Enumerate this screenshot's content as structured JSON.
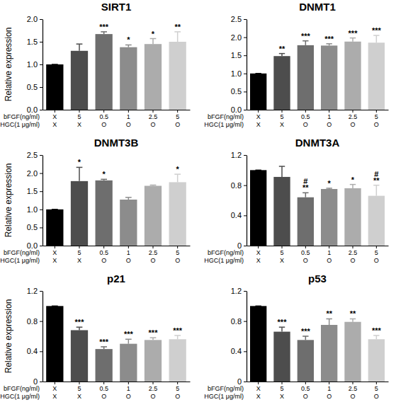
{
  "chart_data": [
    {
      "type": "bar",
      "title": "SIRT1",
      "ylabel": "Relative expression",
      "x_label_rows": [
        {
          "label": "bFGF(ng/ml)",
          "values": [
            "X",
            "5",
            "0.5",
            "1",
            "2.5",
            "5"
          ]
        },
        {
          "label": "HGC(1 μg/ml)",
          "values": [
            "X",
            "X",
            "O",
            "O",
            "O",
            "O"
          ]
        }
      ],
      "values": [
        1.0,
        1.3,
        1.67,
        1.38,
        1.45,
        1.5
      ],
      "errors": [
        0,
        0.15,
        0.05,
        0.05,
        0.12,
        0.22
      ],
      "annotations": [
        null,
        null,
        [
          "***"
        ],
        [
          "*"
        ],
        [
          "*"
        ],
        [
          "**"
        ]
      ],
      "colors": [
        "#000000",
        "#4d4d4d",
        "#6e6e6e",
        "#8c8c8c",
        "#acacac",
        "#cfcfcf"
      ],
      "ylim": [
        0,
        2.0
      ],
      "yticks": [
        {
          "value": 0,
          "label": "0.0"
        },
        0.5,
        {
          "value": 1.0,
          "label": "1.0"
        },
        1.5,
        {
          "value": 2.0,
          "label": "2.0"
        }
      ]
    },
    {
      "type": "bar",
      "title": "DNMT1",
      "x_label_rows": [
        {
          "label": "bFGF(ng/ml)",
          "values": [
            "X",
            "5",
            "0.5",
            "1",
            "2.5",
            "5"
          ]
        },
        {
          "label": "HGC(1 μg/ml)",
          "values": [
            "X",
            "X",
            "O",
            "O",
            "O",
            "O"
          ]
        }
      ],
      "values": [
        1.0,
        1.48,
        1.78,
        1.77,
        1.88,
        1.85
      ],
      "errors": [
        0,
        0.07,
        0.12,
        0.05,
        0.1,
        0.2
      ],
      "annotations": [
        null,
        [
          "**"
        ],
        [
          "***"
        ],
        [
          "***"
        ],
        [
          "***"
        ],
        [
          "***"
        ]
      ],
      "colors": [
        "#000000",
        "#4d4d4d",
        "#6e6e6e",
        "#8c8c8c",
        "#acacac",
        "#cfcfcf"
      ],
      "ylim": [
        0,
        2.5
      ],
      "yticks": [
        {
          "value": 0,
          "label": "0.0"
        },
        0.5,
        {
          "value": 1.0,
          "label": "1.0"
        },
        1.5,
        {
          "value": 2.0,
          "label": "2.0"
        },
        2.5
      ]
    },
    {
      "type": "bar",
      "title": "DNMT3B",
      "ylabel": "Relative expression",
      "x_label_rows": [
        {
          "label": "bFGF(ng/ml)",
          "values": [
            "X",
            "5",
            "0.5",
            "1",
            "2.5",
            "5"
          ]
        },
        {
          "label": "HGC(1 μg/ml)",
          "values": [
            "X",
            "X",
            "O",
            "O",
            "O",
            "O"
          ]
        }
      ],
      "values": [
        1.0,
        1.78,
        1.8,
        1.27,
        1.65,
        1.75
      ],
      "errors": [
        0,
        0.38,
        0.03,
        0.06,
        0.02,
        0.22
      ],
      "annotations": [
        null,
        [
          "*"
        ],
        [
          "*"
        ],
        null,
        null,
        [
          "*"
        ]
      ],
      "colors": [
        "#000000",
        "#4d4d4d",
        "#6e6e6e",
        "#8c8c8c",
        "#acacac",
        "#cfcfcf"
      ],
      "ylim": [
        0,
        2.5
      ],
      "yticks": [
        {
          "value": 0,
          "label": "0.0"
        },
        0.5,
        {
          "value": 1.0,
          "label": "1.0"
        },
        1.5,
        {
          "value": 2.0,
          "label": "2.0"
        },
        2.5
      ]
    },
    {
      "type": "bar",
      "title": "DNMT3A",
      "x_label_rows": [
        {
          "label": "bFGF(ng/ml)",
          "values": [
            "X",
            "5",
            "0.5",
            "1",
            "2.5",
            "5"
          ]
        },
        {
          "label": "HGC(1 μg/ml)",
          "values": [
            "X",
            "X",
            "O",
            "O",
            "O",
            "O"
          ]
        }
      ],
      "values": [
        1.0,
        0.91,
        0.64,
        0.75,
        0.76,
        0.66
      ],
      "errors": [
        0,
        0.14,
        0.06,
        0.01,
        0.05,
        0.14
      ],
      "annotations": [
        null,
        null,
        [
          "#",
          "**"
        ],
        [
          "*"
        ],
        [
          "*"
        ],
        [
          "#",
          "**"
        ]
      ],
      "colors": [
        "#000000",
        "#4d4d4d",
        "#6e6e6e",
        "#8c8c8c",
        "#acacac",
        "#cfcfcf"
      ],
      "ylim": [
        0,
        1.2
      ],
      "yticks": [
        0,
        0.4,
        0.8,
        1.2
      ]
    },
    {
      "type": "bar",
      "title": "p21",
      "ylabel": "Relative expression",
      "x_label_rows": [
        {
          "label": "bFGF(ng/ml)",
          "values": [
            "X",
            "5",
            "0.5",
            "1",
            "2.5",
            "5"
          ]
        },
        {
          "label": "HGC(1 μg/ml)",
          "values": [
            "X",
            "X",
            "O",
            "O",
            "O",
            "O"
          ]
        }
      ],
      "values": [
        1.0,
        0.68,
        0.43,
        0.5,
        0.55,
        0.56
      ],
      "errors": [
        0,
        0.04,
        0.03,
        0.06,
        0.03,
        0.05
      ],
      "annotations": [
        null,
        [
          "***"
        ],
        [
          "***"
        ],
        [
          "***"
        ],
        [
          "***"
        ],
        [
          "***"
        ]
      ],
      "colors": [
        "#000000",
        "#4d4d4d",
        "#6e6e6e",
        "#8c8c8c",
        "#acacac",
        "#cfcfcf"
      ],
      "ylim": [
        0,
        1.2
      ],
      "yticks": [
        0,
        0.4,
        0.8,
        1.2
      ]
    },
    {
      "type": "bar",
      "title": "p53",
      "x_label_rows": [
        {
          "label": "bFGF(ng/ml)",
          "values": [
            "X",
            "5",
            "0.5",
            "1",
            "2.5",
            "5"
          ]
        },
        {
          "label": "HGC(1 μg/ml)",
          "values": [
            "X",
            "X",
            "O",
            "O",
            "O",
            "O"
          ]
        }
      ],
      "values": [
        1.0,
        0.66,
        0.55,
        0.75,
        0.79,
        0.56
      ],
      "errors": [
        0,
        0.06,
        0.05,
        0.08,
        0.04,
        0.05
      ],
      "annotations": [
        null,
        [
          "***"
        ],
        [
          "***"
        ],
        [
          "**"
        ],
        [
          "**"
        ],
        [
          "***"
        ]
      ],
      "colors": [
        "#000000",
        "#4d4d4d",
        "#6e6e6e",
        "#8c8c8c",
        "#acacac",
        "#cfcfcf"
      ],
      "ylim": [
        0,
        1.2
      ],
      "yticks": [
        0,
        0.4,
        0.8,
        1.2
      ]
    }
  ]
}
